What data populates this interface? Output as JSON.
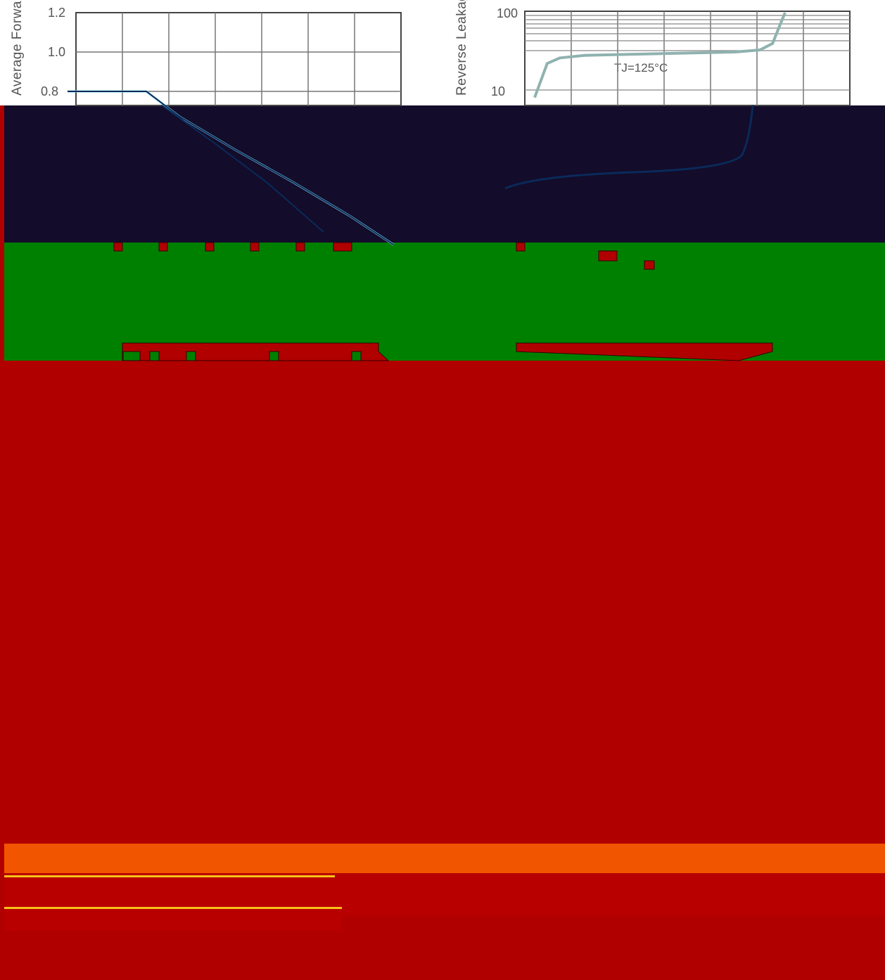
{
  "colors": {
    "navy": "#130c2a",
    "green": "#008000",
    "red": "#b00000",
    "orange": "#f25500",
    "yellow": "#f7c21a",
    "curve_left": "#8ee0ee",
    "curve_right": "#8fb2b0"
  },
  "chart_data": [
    {
      "type": "line",
      "ylabel": "Average Forward Output Current (A)",
      "yticks": [
        "1.2",
        "1.0",
        "0.8"
      ],
      "ylim": [
        0,
        1.2
      ],
      "grid": true,
      "series": [
        {
          "x": [
            0,
            1.4,
            2,
            3,
            4,
            5,
            5.8
          ],
          "y": [
            0.8,
            0.8,
            0.67,
            0.5,
            0.34,
            0.17,
            0.02
          ]
        }
      ]
    },
    {
      "type": "line",
      "ylabel": "Reverse Leakage Current (μA)",
      "yticks": [
        "100",
        "10"
      ],
      "yscale": "log",
      "grid": true,
      "annotations": [
        "TJ=125°C"
      ],
      "series": [
        {
          "name": "TJ=125°C",
          "x": [
            0,
            5,
            10,
            20,
            40,
            60,
            80,
            90,
            95,
            98,
            100
          ],
          "y": [
            8,
            22,
            26,
            28,
            29,
            30,
            31,
            33,
            40,
            70,
            100
          ]
        }
      ]
    }
  ]
}
